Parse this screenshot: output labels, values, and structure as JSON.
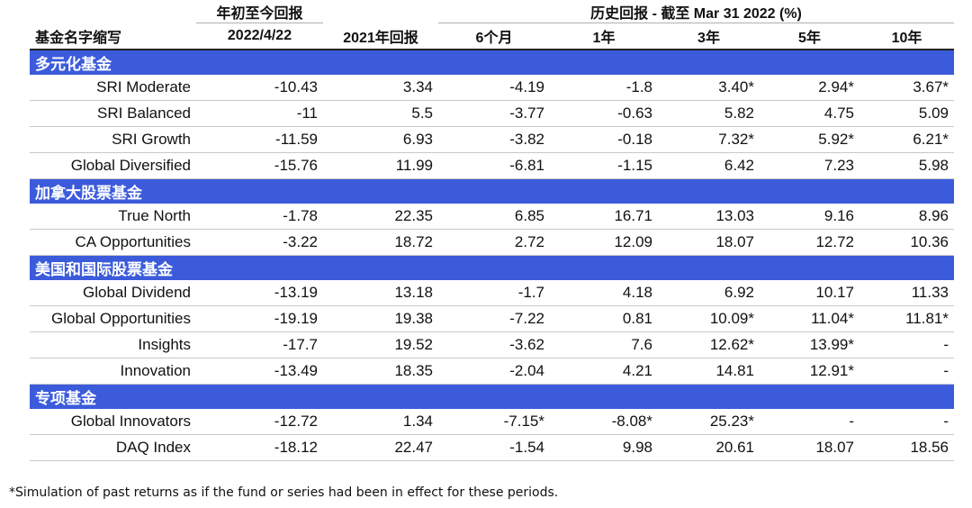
{
  "header": {
    "ytd_line1": "年初至今回报",
    "history_title": "历史回报 - 截至 Mar 31 2022 (%)",
    "fund_col": "基金名字缩写",
    "ytd_line2": "2022/4/22",
    "y2021": "2021年回报",
    "m6": "6个月",
    "y1": "1年",
    "y3": "3年",
    "y5": "5年",
    "y10": "10年"
  },
  "sections": [
    {
      "title": "多元化基金",
      "rows": [
        {
          "name": "SRI Moderate",
          "ytd": "-10.43",
          "y2021": "3.34",
          "m6": "-4.19",
          "y1": "-1.8",
          "y3": "3.40*",
          "y5": "2.94*",
          "y10": "3.67*"
        },
        {
          "name": "SRI Balanced",
          "ytd": "-11",
          "y2021": "5.5",
          "m6": "-3.77",
          "y1": "-0.63",
          "y3": "5.82",
          "y5": "4.75",
          "y10": "5.09"
        },
        {
          "name": "SRI Growth",
          "ytd": "-11.59",
          "y2021": "6.93",
          "m6": "-3.82",
          "y1": "-0.18",
          "y3": "7.32*",
          "y5": "5.92*",
          "y10": "6.21*"
        },
        {
          "name": "Global Diversified",
          "ytd": "-15.76",
          "y2021": "11.99",
          "m6": "-6.81",
          "y1": "-1.15",
          "y3": "6.42",
          "y5": "7.23",
          "y10": "5.98"
        }
      ]
    },
    {
      "title": "加拿大股票基金",
      "rows": [
        {
          "name": "True North",
          "ytd": "-1.78",
          "y2021": "22.35",
          "m6": "6.85",
          "y1": "16.71",
          "y3": "13.03",
          "y5": "9.16",
          "y10": "8.96"
        },
        {
          "name": "CA Opportunities",
          "ytd": "-3.22",
          "y2021": "18.72",
          "m6": "2.72",
          "y1": "12.09",
          "y3": "18.07",
          "y5": "12.72",
          "y10": "10.36"
        }
      ]
    },
    {
      "title": "美国和国际股票基金",
      "rows": [
        {
          "name": "Global Dividend",
          "ytd": "-13.19",
          "y2021": "13.18",
          "m6": "-1.7",
          "y1": "4.18",
          "y3": "6.92",
          "y5": "10.17",
          "y10": "11.33"
        },
        {
          "name": "Global Opportunities",
          "ytd": "-19.19",
          "y2021": "19.38",
          "m6": "-7.22",
          "y1": "0.81",
          "y3": "10.09*",
          "y5": "11.04*",
          "y10": "11.81*"
        },
        {
          "name": "Insights",
          "ytd": "-17.7",
          "y2021": "19.52",
          "m6": "-3.62",
          "y1": "7.6",
          "y3": "12.62*",
          "y5": "13.99*",
          "y10": "-"
        },
        {
          "name": "Innovation",
          "ytd": "-13.49",
          "y2021": "18.35",
          "m6": "-2.04",
          "y1": "4.21",
          "y3": "14.81",
          "y5": "12.91*",
          "y10": "-"
        }
      ]
    },
    {
      "title": "专项基金",
      "rows": [
        {
          "name": "Global Innovators",
          "ytd": "-12.72",
          "y2021": "1.34",
          "m6": "-7.15*",
          "y1": "-8.08*",
          "y3": "25.23*",
          "y5": "-",
          "y10": "-"
        },
        {
          "name": "DAQ Index",
          "ytd": "-18.12",
          "y2021": "22.47",
          "m6": "-1.54",
          "y1": "9.98",
          "y3": "20.61",
          "y5": "18.07",
          "y10": "18.56"
        }
      ]
    }
  ],
  "footnote": "*Simulation of past returns as if the fund or series had been in effect for these periods.",
  "colors": {
    "section_bar": "#3b5bdb",
    "section_text": "#ffffff"
  }
}
